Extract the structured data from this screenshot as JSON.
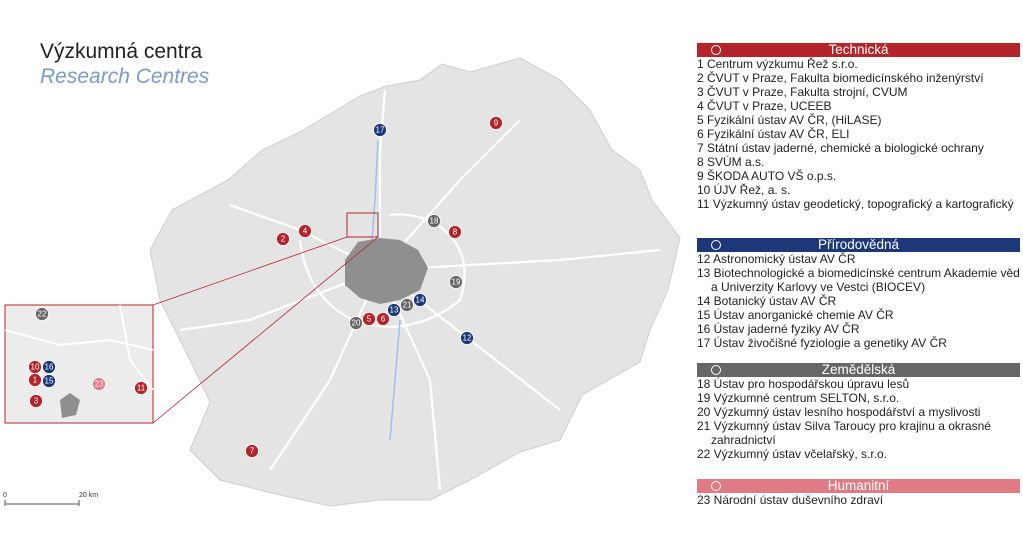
{
  "title": "Výzkumná centra",
  "subtitle": "Research Centres",
  "scale": {
    "start": "0",
    "end": "20 km"
  },
  "legend": [
    {
      "name": "Technická",
      "color": "#b3242b",
      "items": [
        "1 Centrum výzkumu Řež s.r.o.",
        "2 ČVUT v Praze, Fakulta biomedicínského inženýrství",
        "3 ČVUT v Praze, Fakulta strojní, CVUM",
        "4 ČVUT v Praze, UCEEB",
        "5 Fyzikální ústav AV ČR, (HiLASE)",
        "6 Fyzikální ústav AV ČR, ELI",
        "7 Státní ústav jaderné, chemické a biologické ochrany",
        "8 SVÚM a.s.",
        "9 ŠKODA AUTO VŠ o.p.s.",
        "10 ÚJV Řež, a. s.",
        "11 Výzkumný ústav geodetický, topografický a kartografický"
      ]
    },
    {
      "name": "Přírodovědná",
      "color": "#1c3878",
      "items": [
        "12 Astronomický ústav AV ČR",
        "13 Biotechnologické a biomedicínské centrum Akademie věd a Univerzity Karlovy ve Vestci (BIOCEV)",
        "14 Botanický ústav AV ČR",
        "15 Ústav anorganické chemie AV ČR",
        "16 Ústav jaderné fyziky AV ČR",
        "17 Ústav živočišné fyziologie a genetiky AV ČR"
      ]
    },
    {
      "name": "Zemědělská",
      "color": "#666666",
      "items": [
        "18 Ústav pro hospodářskou úpravu lesů",
        "19 Výzkumné centrum SELTON, s.r.o.",
        "20 Výzkumný ústav lesního hospodářství a myslivosti",
        "21 Výzkumný ústav Silva Taroucy pro krajinu a okrasné zahradnictví",
        "22 Výzkumný ústav včelařský, s.r.o."
      ]
    },
    {
      "name": "Humanitní",
      "color": "#e07a84",
      "items": [
        "23 Národní ústav duševního zdraví"
      ]
    }
  ],
  "map_markers": [
    {
      "label": "17",
      "color": "#1c3878"
    },
    {
      "label": "9",
      "color": "#b3242b"
    },
    {
      "label": "18",
      "color": "#666666"
    },
    {
      "label": "8",
      "color": "#b3242b"
    },
    {
      "label": "2",
      "color": "#b3242b"
    },
    {
      "label": "4",
      "color": "#b3242b"
    },
    {
      "label": "19",
      "color": "#666666"
    },
    {
      "label": "14",
      "color": "#1c3878"
    },
    {
      "label": "21",
      "color": "#666666"
    },
    {
      "label": "13",
      "color": "#1c3878"
    },
    {
      "label": "20",
      "color": "#666666"
    },
    {
      "label": "5",
      "color": "#b3242b"
    },
    {
      "label": "6",
      "color": "#b3242b"
    },
    {
      "label": "12",
      "color": "#1c3878"
    },
    {
      "label": "7",
      "color": "#b3242b"
    }
  ],
  "inset_markers": [
    {
      "label": "22",
      "color": "#666666"
    },
    {
      "label": "10",
      "color": "#b3242b"
    },
    {
      "label": "16",
      "color": "#1c3878"
    },
    {
      "label": "1",
      "color": "#b3242b"
    },
    {
      "label": "15",
      "color": "#1c3878"
    },
    {
      "label": "23",
      "color": "#e07a84"
    },
    {
      "label": "11",
      "color": "#b3242b"
    },
    {
      "label": "3",
      "color": "#b3242b"
    }
  ]
}
